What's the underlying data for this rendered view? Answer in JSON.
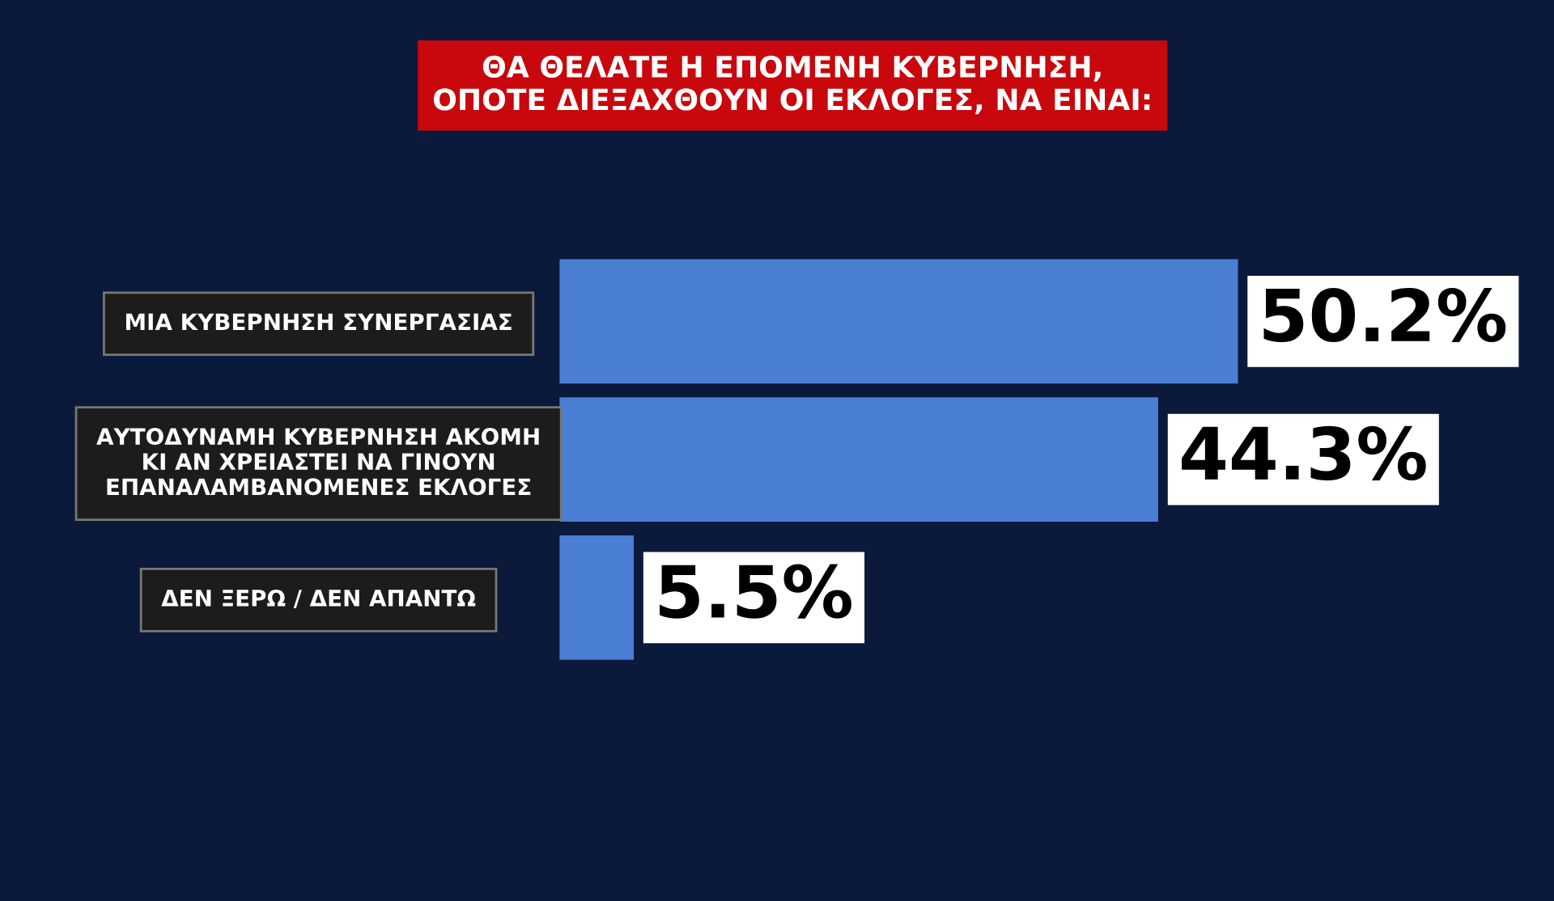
{
  "chart_data": {
    "type": "bar",
    "orientation": "horizontal",
    "title": "ΘΑ ΘΕΛΑΤΕ Η ΕΠΟΜΕΝΗ ΚΥΒΕΡΝΗΣΗ,\nΟΠΟΤΕ ΔΙΕΞΑΧΘΟΥΝ ΟΙ ΕΚΛΟΓΕΣ, ΝΑ ΕΙΝΑΙ:",
    "categories": [
      "ΜΙΑ ΚΥΒΕΡΝΗΣΗ ΣΥΝΕΡΓΑΣΙΑΣ",
      "ΑΥΤΟΔΥΝΑΜΗ ΚΥΒΕΡΝΗΣΗ ΑΚΟΜΗ\nΚΙ ΑΝ ΧΡΕΙΑΣΤΕΙ ΝΑ ΓΙΝΟΥΝ\nΕΠΑΝΑΛΑΜΒΑΝΟΜΕΝΕΣ ΕΚΛΟΓΕΣ",
      "ΔΕΝ ΞΕΡΩ / ΔΕΝ ΑΠΑΝΤΩ"
    ],
    "values": [
      50.2,
      44.3,
      5.5
    ],
    "value_labels": [
      "50.2%",
      "44.3%",
      "5.5%"
    ],
    "color": "#4a7fd4",
    "tick_labels": "y",
    "grid": false,
    "legend": false
  }
}
